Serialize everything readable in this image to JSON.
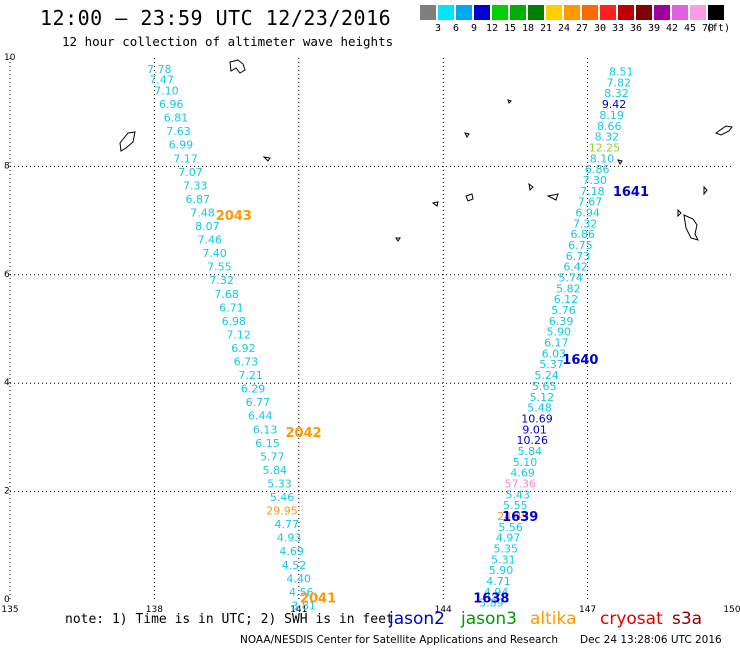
{
  "header": {
    "title": "12:00 – 23:59 UTC 12/23/2016",
    "subtitle": "12 hour collection of altimeter wave heights"
  },
  "color_scale": {
    "unit": "(ft)",
    "bins": [
      {
        "label": "3",
        "color": "#7f7f7f"
      },
      {
        "label": "6",
        "color": "#00e5ff"
      },
      {
        "label": "9",
        "color": "#00a8f0"
      },
      {
        "label": "12",
        "color": "#0000d0"
      },
      {
        "label": "15",
        "color": "#00d000"
      },
      {
        "label": "18",
        "color": "#00b000"
      },
      {
        "label": "21",
        "color": "#008000"
      },
      {
        "label": "24",
        "color": "#ffd000"
      },
      {
        "label": "27",
        "color": "#ff9900"
      },
      {
        "label": "30",
        "color": "#ff6a00"
      },
      {
        "label": "33",
        "color": "#ff2020"
      },
      {
        "label": "36",
        "color": "#c00000"
      },
      {
        "label": "39",
        "color": "#800000"
      },
      {
        "label": "42",
        "color": "#a000a0"
      },
      {
        "label": "45",
        "color": "#e060e0"
      },
      {
        "label": "70",
        "color": "#ff9be0"
      },
      {
        "label": "",
        "color": "#000000"
      }
    ]
  },
  "chart_data": {
    "type": "scatter",
    "title": "12:00 – 23:59 UTC 12/23/2016",
    "subtitle": "12 hour collection of altimeter wave heights",
    "xlim": [
      135,
      150
    ],
    "ylim": [
      0,
      10
    ],
    "x_ticks": [
      "135",
      "138",
      "141",
      "144",
      "147",
      "150"
    ],
    "y_ticks": [
      "0",
      "2",
      "4",
      "6",
      "8",
      "10"
    ],
    "grid": true,
    "colors": {
      "cyan": "#17c7e6",
      "blue": "#0000cc",
      "orange": "#ff9900",
      "yellowgreen": "#99cc33",
      "pink": "#ff88cc"
    },
    "tracks": [
      {
        "name": "2043",
        "x": 139.65,
        "y": 7.1,
        "color": "#ff9900"
      },
      {
        "name": "2042",
        "x": 141.1,
        "y": 3.1,
        "color": "#ff9900"
      },
      {
        "name": "2041",
        "x": 141.4,
        "y": 0.05,
        "color": "#ff9900"
      },
      {
        "name": "1641",
        "x": 147.9,
        "y": 7.55,
        "color": "#0000cc"
      },
      {
        "name": "1640",
        "x": 146.85,
        "y": 4.45,
        "color": "#0000cc"
      },
      {
        "name": "1639",
        "x": 145.6,
        "y": 1.55,
        "color": "#0000cc"
      },
      {
        "name": "1638",
        "x": 145.0,
        "y": 0.05,
        "color": "#0000cc"
      }
    ],
    "points": [
      {
        "x": 138.1,
        "y": 9.8,
        "v": "7.78",
        "c": "cyan"
      },
      {
        "x": 138.15,
        "y": 9.6,
        "v": "7.47",
        "c": "cyan"
      },
      {
        "x": 138.25,
        "y": 9.4,
        "v": "7.10",
        "c": "cyan"
      },
      {
        "x": 138.35,
        "y": 9.15,
        "v": "6.96",
        "c": "cyan"
      },
      {
        "x": 138.45,
        "y": 8.9,
        "v": "6.81",
        "c": "cyan"
      },
      {
        "x": 138.5,
        "y": 8.65,
        "v": "7.63",
        "c": "cyan"
      },
      {
        "x": 138.55,
        "y": 8.4,
        "v": "6.99",
        "c": "cyan"
      },
      {
        "x": 138.65,
        "y": 8.15,
        "v": "7.17",
        "c": "cyan"
      },
      {
        "x": 138.75,
        "y": 7.9,
        "v": "7.07",
        "c": "cyan"
      },
      {
        "x": 138.85,
        "y": 7.65,
        "v": "7.33",
        "c": "cyan"
      },
      {
        "x": 138.9,
        "y": 7.4,
        "v": "6.87",
        "c": "cyan"
      },
      {
        "x": 139.0,
        "y": 7.15,
        "v": "7.48",
        "c": "cyan"
      },
      {
        "x": 139.1,
        "y": 6.9,
        "v": "8.07",
        "c": "cyan"
      },
      {
        "x": 139.15,
        "y": 6.65,
        "v": "7.46",
        "c": "cyan"
      },
      {
        "x": 139.25,
        "y": 6.4,
        "v": "7.40",
        "c": "cyan"
      },
      {
        "x": 139.35,
        "y": 6.15,
        "v": "7.55",
        "c": "cyan"
      },
      {
        "x": 139.4,
        "y": 5.9,
        "v": "7.32",
        "c": "cyan"
      },
      {
        "x": 139.5,
        "y": 5.65,
        "v": "7.68",
        "c": "cyan"
      },
      {
        "x": 139.6,
        "y": 5.4,
        "v": "6.71",
        "c": "cyan"
      },
      {
        "x": 139.65,
        "y": 5.15,
        "v": "6.98",
        "c": "cyan"
      },
      {
        "x": 139.75,
        "y": 4.9,
        "v": "7.12",
        "c": "cyan"
      },
      {
        "x": 139.85,
        "y": 4.65,
        "v": "6.92",
        "c": "cyan"
      },
      {
        "x": 139.9,
        "y": 4.4,
        "v": "6.73",
        "c": "cyan"
      },
      {
        "x": 140.0,
        "y": 4.15,
        "v": "7.21",
        "c": "cyan"
      },
      {
        "x": 140.05,
        "y": 3.9,
        "v": "6.29",
        "c": "cyan"
      },
      {
        "x": 140.15,
        "y": 3.65,
        "v": "6.77",
        "c": "cyan"
      },
      {
        "x": 140.2,
        "y": 3.4,
        "v": "6.44",
        "c": "cyan"
      },
      {
        "x": 140.3,
        "y": 3.15,
        "v": "6.13",
        "c": "cyan"
      },
      {
        "x": 140.35,
        "y": 2.9,
        "v": "6.15",
        "c": "cyan"
      },
      {
        "x": 140.45,
        "y": 2.65,
        "v": "5.77",
        "c": "cyan"
      },
      {
        "x": 140.5,
        "y": 2.4,
        "v": "5.84",
        "c": "cyan"
      },
      {
        "x": 140.6,
        "y": 2.15,
        "v": "5.33",
        "c": "cyan"
      },
      {
        "x": 140.65,
        "y": 1.9,
        "v": "5.46",
        "c": "cyan"
      },
      {
        "x": 140.65,
        "y": 1.65,
        "v": "29.95",
        "c": "orange"
      },
      {
        "x": 140.75,
        "y": 1.4,
        "v": "4.77",
        "c": "cyan"
      },
      {
        "x": 140.8,
        "y": 1.15,
        "v": "4.93",
        "c": "cyan"
      },
      {
        "x": 140.85,
        "y": 0.9,
        "v": "4.69",
        "c": "cyan"
      },
      {
        "x": 140.9,
        "y": 0.65,
        "v": "4.52",
        "c": "cyan"
      },
      {
        "x": 141.0,
        "y": 0.4,
        "v": "4.40",
        "c": "cyan"
      },
      {
        "x": 141.05,
        "y": 0.15,
        "v": "4.56",
        "c": "cyan"
      },
      {
        "x": 141.1,
        "y": -0.1,
        "v": "3.81",
        "c": "cyan"
      },
      {
        "x": 147.7,
        "y": 9.75,
        "v": "8.51",
        "c": "cyan"
      },
      {
        "x": 147.65,
        "y": 9.55,
        "v": "7.82",
        "c": "cyan"
      },
      {
        "x": 147.6,
        "y": 9.35,
        "v": "8.32",
        "c": "cyan"
      },
      {
        "x": 147.55,
        "y": 9.15,
        "v": "9.42",
        "c": "blue"
      },
      {
        "x": 147.5,
        "y": 8.95,
        "v": "8.19",
        "c": "cyan"
      },
      {
        "x": 147.45,
        "y": 8.75,
        "v": "8.66",
        "c": "cyan"
      },
      {
        "x": 147.4,
        "y": 8.55,
        "v": "8.32",
        "c": "cyan"
      },
      {
        "x": 147.35,
        "y": 8.35,
        "v": "12.25",
        "c": "yellowgreen"
      },
      {
        "x": 147.3,
        "y": 8.15,
        "v": "8.10",
        "c": "cyan"
      },
      {
        "x": 147.2,
        "y": 7.95,
        "v": "6.86",
        "c": "cyan"
      },
      {
        "x": 147.15,
        "y": 7.75,
        "v": "7.30",
        "c": "cyan"
      },
      {
        "x": 147.1,
        "y": 7.55,
        "v": "7.18",
        "c": "cyan"
      },
      {
        "x": 147.05,
        "y": 7.35,
        "v": "7.67",
        "c": "cyan"
      },
      {
        "x": 147.0,
        "y": 7.15,
        "v": "6.94",
        "c": "cyan"
      },
      {
        "x": 146.95,
        "y": 6.95,
        "v": "7.32",
        "c": "cyan"
      },
      {
        "x": 146.9,
        "y": 6.75,
        "v": "6.86",
        "c": "cyan"
      },
      {
        "x": 146.85,
        "y": 6.55,
        "v": "6.75",
        "c": "cyan"
      },
      {
        "x": 146.8,
        "y": 6.35,
        "v": "6.73",
        "c": "cyan"
      },
      {
        "x": 146.75,
        "y": 6.15,
        "v": "6.42",
        "c": "cyan"
      },
      {
        "x": 146.65,
        "y": 5.95,
        "v": "5.74",
        "c": "cyan"
      },
      {
        "x": 146.6,
        "y": 5.75,
        "v": "5.82",
        "c": "cyan"
      },
      {
        "x": 146.55,
        "y": 5.55,
        "v": "6.12",
        "c": "cyan"
      },
      {
        "x": 146.5,
        "y": 5.35,
        "v": "5.76",
        "c": "cyan"
      },
      {
        "x": 146.45,
        "y": 5.15,
        "v": "6.39",
        "c": "cyan"
      },
      {
        "x": 146.4,
        "y": 4.95,
        "v": "5.90",
        "c": "cyan"
      },
      {
        "x": 146.35,
        "y": 4.75,
        "v": "6.17",
        "c": "cyan"
      },
      {
        "x": 146.3,
        "y": 4.55,
        "v": "6.03",
        "c": "cyan"
      },
      {
        "x": 146.25,
        "y": 4.35,
        "v": "5.37",
        "c": "cyan"
      },
      {
        "x": 146.15,
        "y": 4.15,
        "v": "5.24",
        "c": "cyan"
      },
      {
        "x": 146.1,
        "y": 3.95,
        "v": "5.65",
        "c": "cyan"
      },
      {
        "x": 146.05,
        "y": 3.75,
        "v": "5.12",
        "c": "cyan"
      },
      {
        "x": 146.0,
        "y": 3.55,
        "v": "5.48",
        "c": "cyan"
      },
      {
        "x": 145.95,
        "y": 3.35,
        "v": "10.69",
        "c": "blue"
      },
      {
        "x": 145.9,
        "y": 3.15,
        "v": "9.01",
        "c": "blue"
      },
      {
        "x": 145.85,
        "y": 2.95,
        "v": "10.26",
        "c": "blue"
      },
      {
        "x": 145.8,
        "y": 2.75,
        "v": "5.84",
        "c": "cyan"
      },
      {
        "x": 145.7,
        "y": 2.55,
        "v": "5.10",
        "c": "cyan"
      },
      {
        "x": 145.65,
        "y": 2.35,
        "v": "4.69",
        "c": "cyan"
      },
      {
        "x": 145.6,
        "y": 2.15,
        "v": "57.36",
        "c": "pink"
      },
      {
        "x": 145.55,
        "y": 1.95,
        "v": "5.43",
        "c": "cyan"
      },
      {
        "x": 145.5,
        "y": 1.75,
        "v": "5.55",
        "c": "cyan"
      },
      {
        "x": 145.45,
        "y": 1.55,
        "v": "24.49",
        "c": "orange"
      },
      {
        "x": 145.4,
        "y": 1.35,
        "v": "5.56",
        "c": "cyan"
      },
      {
        "x": 145.35,
        "y": 1.15,
        "v": "4.97",
        "c": "cyan"
      },
      {
        "x": 145.3,
        "y": 0.95,
        "v": "5.35",
        "c": "cyan"
      },
      {
        "x": 145.25,
        "y": 0.75,
        "v": "5.31",
        "c": "cyan"
      },
      {
        "x": 145.2,
        "y": 0.55,
        "v": "5.90",
        "c": "cyan"
      },
      {
        "x": 145.15,
        "y": 0.35,
        "v": "4.71",
        "c": "cyan"
      },
      {
        "x": 145.1,
        "y": 0.15,
        "v": "4.94",
        "c": "cyan"
      },
      {
        "x": 145.0,
        "y": -0.05,
        "v": "3.89",
        "c": "cyan"
      }
    ],
    "legend": [
      {
        "name": "jason2",
        "color": "#0000cc"
      },
      {
        "name": "jason3",
        "color": "#009900"
      },
      {
        "name": "altika",
        "color": "#ff9900"
      },
      {
        "name": "cryosat",
        "color": "#dd0000"
      },
      {
        "name": "s3a",
        "color": "#880000"
      }
    ]
  },
  "footer": {
    "note": "note: 1) Time is in UTC; 2) SWH is in feet",
    "credit": "NOAA/NESDIS Center for Satellite Applications and Research",
    "timestamp": "Dec 24 13:28:06 UTC 2016"
  }
}
